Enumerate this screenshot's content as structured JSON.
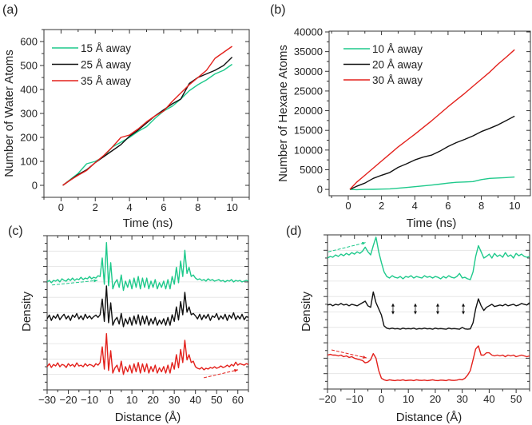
{
  "chart_data": [
    {
      "panel": "(a)",
      "type": "line",
      "xlabel": "Time (ns)",
      "ylabel": "Number of Water Atoms",
      "xlim": [
        -1,
        11
      ],
      "ylim": [
        -50,
        650
      ],
      "xticks": [
        0,
        2,
        4,
        6,
        8,
        10
      ],
      "yticks": [
        0,
        100,
        200,
        300,
        400,
        500,
        600
      ],
      "legend": "top-left",
      "grid": false,
      "x": [
        0.1,
        0.5,
        1,
        1.5,
        2,
        2.5,
        3,
        3.5,
        4,
        4.5,
        5,
        5.5,
        6,
        6.5,
        7,
        7.5,
        8,
        8.5,
        9,
        9.5,
        10
      ],
      "series": [
        {
          "name": "15 Å away",
          "color": "#1ec98b",
          "values": [
            0,
            22,
            50,
            90,
            100,
            120,
            160,
            180,
            200,
            225,
            245,
            280,
            310,
            330,
            360,
            395,
            420,
            440,
            465,
            480,
            505
          ]
        },
        {
          "name": "25 Å away",
          "color": "#111111",
          "values": [
            0,
            20,
            45,
            65,
            95,
            120,
            145,
            170,
            205,
            230,
            260,
            290,
            315,
            340,
            360,
            425,
            450,
            465,
            480,
            500,
            535
          ]
        },
        {
          "name": "35 Å away",
          "color": "#e3211c",
          "values": [
            0,
            20,
            42,
            62,
            95,
            125,
            160,
            200,
            210,
            235,
            265,
            290,
            310,
            350,
            385,
            420,
            450,
            480,
            530,
            555,
            580
          ]
        }
      ]
    },
    {
      "panel": "(b)",
      "type": "line",
      "xlabel": "Time (ns)",
      "ylabel": "Number of Hexane Atoms",
      "xlim": [
        -1.15,
        10.95
      ],
      "ylim": [
        -1600,
        40200
      ],
      "xticks": [
        0,
        2,
        4,
        6,
        8,
        10
      ],
      "yticks": [
        0,
        5000,
        10000,
        15000,
        20000,
        25000,
        30000,
        35000,
        40000
      ],
      "legend": "top-left",
      "grid": false,
      "x": [
        0.1,
        0.5,
        1,
        1.5,
        2,
        2.5,
        3,
        3.5,
        4,
        4.5,
        5,
        5.5,
        6,
        6.5,
        7,
        7.5,
        8,
        8.5,
        9,
        9.5,
        10
      ],
      "series": [
        {
          "name": "10 Å away",
          "color": "#1ec98b",
          "values": [
            0,
            -50,
            0,
            30,
            80,
            150,
            300,
            500,
            700,
            900,
            1100,
            1350,
            1600,
            1800,
            1900,
            2000,
            2500,
            2800,
            2900,
            3000,
            3150
          ]
        },
        {
          "name": "20 Å away",
          "color": "#111111",
          "values": [
            0,
            800,
            1600,
            2800,
            3600,
            4300,
            5600,
            6500,
            7500,
            8200,
            8700,
            9700,
            10900,
            11900,
            12700,
            13600,
            14700,
            15500,
            16400,
            17500,
            18600
          ]
        },
        {
          "name": "30 Å away",
          "color": "#e3211c",
          "values": [
            0,
            1800,
            3600,
            5400,
            7200,
            9000,
            10800,
            12400,
            14000,
            15700,
            17400,
            19200,
            21000,
            22700,
            24400,
            26200,
            28000,
            29800,
            31800,
            33600,
            35500
          ]
        }
      ]
    },
    {
      "panel": "(c)",
      "type": "line",
      "xlabel": "Distance (Å)",
      "ylabel": "Density",
      "xlim": [
        -30,
        65
      ],
      "ylim": [
        0,
        10
      ],
      "xticks": [
        -30,
        -20,
        -10,
        0,
        10,
        20,
        30,
        40,
        50,
        60
      ],
      "yticks_labeled": false,
      "grid": true,
      "x_start": -30,
      "x_step": 1,
      "series": [
        {
          "color": "#1ec98b",
          "values": [
            7.0,
            7.1,
            6.95,
            7.1,
            7.05,
            7.15,
            7.0,
            7.2,
            7.1,
            7.05,
            7.2,
            7.1,
            7.25,
            7.1,
            7.2,
            7.15,
            7.3,
            7.15,
            7.25,
            7.2,
            7.35,
            7.2,
            7.3,
            7.25,
            7.4,
            7.35,
            8.55,
            6.85,
            9.55,
            6.75,
            8.25,
            6.55,
            6.95,
            7.15,
            6.65,
            7.45,
            6.45,
            7.05,
            6.65,
            7.15,
            6.55,
            7.25,
            6.65,
            7.35,
            6.55,
            7.25,
            6.65,
            7.25,
            6.55,
            7.05,
            6.65,
            7.15,
            6.55,
            6.95,
            6.65,
            7.05,
            6.55,
            7.15,
            6.55,
            7.35,
            6.85,
            7.95,
            6.95,
            8.35,
            7.35,
            9.05,
            7.55,
            7.95,
            7.35,
            7.45,
            7.25,
            7.15,
            7.2,
            7.1,
            7.15,
            7.05,
            7.2,
            7.1,
            7.15,
            7.05,
            7.1,
            7.15,
            7.05,
            7.1,
            7.0,
            7.1,
            7.05,
            7.15,
            7.0,
            7.1,
            7.05,
            7.1,
            7.0,
            7.05,
            7.1,
            7.05
          ]
        },
        {
          "color": "#111111",
          "values": [
            4.6,
            4.85,
            4.5,
            4.8,
            4.65,
            4.9,
            4.55,
            4.75,
            4.9,
            4.6,
            4.8,
            4.5,
            4.85,
            4.7,
            4.95,
            4.6,
            4.8,
            4.55,
            4.9,
            4.65,
            4.8,
            4.6,
            4.75,
            4.85,
            4.7,
            4.87,
            5.89,
            4.44,
            6.74,
            4.36,
            5.64,
            4.19,
            4.53,
            4.7,
            4.27,
            4.96,
            4.1,
            4.61,
            4.27,
            4.7,
            4.19,
            4.79,
            4.27,
            4.87,
            4.19,
            4.79,
            4.27,
            4.79,
            4.19,
            4.61,
            4.27,
            4.7,
            4.19,
            4.53,
            4.27,
            4.61,
            4.19,
            4.7,
            4.19,
            4.87,
            4.44,
            5.38,
            4.53,
            5.72,
            4.87,
            6.32,
            5.04,
            5.38,
            4.87,
            4.96,
            4.8,
            4.6,
            4.9,
            4.55,
            4.85,
            4.65,
            4.9,
            4.5,
            4.8,
            4.7,
            4.95,
            4.55,
            4.8,
            4.6,
            4.9,
            4.5,
            4.85,
            4.65,
            5.0,
            4.55,
            4.8,
            4.6,
            4.9,
            4.55,
            4.75,
            4.7
          ]
        },
        {
          "color": "#e3211c",
          "values": [
            1.5,
            1.7,
            1.45,
            1.65,
            1.55,
            1.75,
            1.5,
            1.65,
            1.6,
            1.45,
            1.7,
            1.55,
            1.65,
            1.5,
            1.75,
            1.55,
            1.6,
            1.5,
            1.7,
            1.55,
            1.65,
            1.6,
            1.5,
            1.7,
            1.6,
            1.77,
            2.79,
            1.34,
            3.64,
            1.26,
            2.54,
            1.09,
            1.43,
            1.6,
            1.17,
            1.86,
            1.0,
            1.51,
            1.17,
            1.6,
            1.09,
            1.69,
            1.17,
            1.77,
            1.09,
            1.69,
            1.17,
            1.69,
            1.09,
            1.51,
            1.17,
            1.6,
            1.09,
            1.43,
            1.17,
            1.51,
            1.09,
            1.6,
            1.09,
            1.77,
            1.34,
            2.28,
            1.43,
            2.62,
            1.77,
            3.22,
            1.94,
            2.28,
            1.77,
            1.86,
            1.5,
            1.4,
            1.35,
            1.45,
            1.3,
            1.4,
            1.35,
            1.45,
            1.4,
            1.5,
            1.4,
            1.45,
            1.55,
            1.45,
            1.5,
            1.6,
            1.5,
            1.65,
            1.55,
            1.8,
            1.6,
            1.7,
            1.65,
            1.6,
            1.7,
            1.65
          ]
        }
      ],
      "annotations": [
        {
          "type": "dashed-arrow",
          "color": "#1ec98b",
          "from": [
            -27.7,
            6.8
          ],
          "to": [
            -6.2,
            7.1
          ]
        },
        {
          "type": "dashed-arrow",
          "color": "#e3211c",
          "from": [
            43.9,
            0.78
          ],
          "to": [
            60.1,
            1.3
          ]
        }
      ]
    },
    {
      "panel": "(d)",
      "type": "line",
      "xlabel": "Distance (Å)",
      "ylabel": "Density",
      "xlim": [
        -20,
        55
      ],
      "ylim": [
        0,
        10
      ],
      "xticks": [
        -20,
        -10,
        0,
        10,
        20,
        30,
        40,
        50
      ],
      "yticks_labeled": false,
      "grid": true,
      "x_start": -20,
      "x_step": 1,
      "series": [
        {
          "color": "#1ec98b",
          "values": [
            8.5,
            8.6,
            8.55,
            8.7,
            8.6,
            8.75,
            8.65,
            8.8,
            8.7,
            8.85,
            8.75,
            8.9,
            8.8,
            8.95,
            9.2,
            8.9,
            8.7,
            9.3,
            9.85,
            8.9,
            8.2,
            7.6,
            7.3,
            7.2,
            7.35,
            7.25,
            7.2,
            7.3,
            7.15,
            7.3,
            7.25,
            7.35,
            7.2,
            7.3,
            7.25,
            7.2,
            7.35,
            7.25,
            7.3,
            7.2,
            7.3,
            7.25,
            7.15,
            7.3,
            7.2,
            7.35,
            7.25,
            7.2,
            7.3,
            7.5,
            7.2,
            7.25,
            7.15,
            7.1,
            7.6,
            8.6,
            9.3,
            8.9,
            8.5,
            8.6,
            8.75,
            8.5,
            8.8,
            8.6,
            8.7,
            8.55,
            8.85,
            8.6,
            8.7,
            8.5,
            8.8,
            8.65,
            8.75,
            8.6,
            8.55,
            8.6
          ]
        },
        {
          "color": "#111111",
          "values": [
            5.45,
            5.5,
            5.4,
            5.5,
            5.45,
            5.55,
            5.45,
            5.5,
            5.4,
            5.5,
            5.45,
            5.4,
            5.5,
            5.6,
            5.7,
            5.4,
            5.3,
            6.3,
            5.6,
            5.2,
            4.8,
            4.1,
            3.95,
            3.9,
            3.95,
            3.9,
            3.92,
            3.88,
            3.95,
            3.9,
            3.92,
            3.9,
            3.95,
            3.88,
            3.92,
            3.9,
            3.95,
            3.9,
            3.92,
            3.88,
            3.95,
            3.9,
            3.92,
            3.9,
            3.88,
            3.95,
            3.9,
            3.92,
            3.9,
            3.88,
            4.0,
            3.9,
            3.88,
            3.9,
            4.3,
            5.2,
            5.85,
            5.4,
            5.1,
            5.3,
            5.4,
            5.5,
            5.35,
            5.4,
            5.45,
            5.4,
            5.5,
            5.4,
            5.45,
            5.5,
            5.4,
            5.45,
            5.55,
            5.5,
            5.45,
            5.6
          ]
        },
        {
          "color": "#e3211c",
          "values": [
            2.2,
            2.25,
            2.2,
            2.2,
            2.15,
            2.2,
            2.1,
            2.15,
            2.05,
            2.1,
            2.0,
            1.95,
            1.9,
            1.85,
            1.7,
            1.75,
            1.9,
            2.3,
            2.0,
            1.2,
            0.7,
            0.6,
            0.55,
            0.6,
            0.57,
            0.55,
            0.58,
            0.56,
            0.6,
            0.55,
            0.57,
            0.58,
            0.55,
            0.6,
            0.57,
            0.56,
            0.58,
            0.55,
            0.57,
            0.6,
            0.56,
            0.55,
            0.58,
            0.57,
            0.55,
            0.6,
            0.57,
            0.56,
            0.58,
            0.62,
            0.6,
            0.7,
            0.9,
            1.2,
            1.9,
            2.6,
            2.8,
            2.2,
            2.2,
            2.35,
            2.35,
            2.2,
            2.15,
            2.2,
            2.15,
            2.2,
            2.1,
            2.2,
            2.15,
            2.2,
            2.1,
            2.15,
            2.2,
            2.15,
            2.1,
            2.15
          ]
        }
      ],
      "annotations": [
        {
          "type": "dashed-arrow",
          "color": "#1ec98b",
          "from": [
            -19.7,
            8.9
          ],
          "to": [
            -5.8,
            9.5
          ]
        },
        {
          "type": "dashed-arrow",
          "color": "#e3211c",
          "from": [
            -18.5,
            2.54
          ],
          "to": [
            -5.5,
            2.02
          ]
        },
        {
          "type": "double-arrow",
          "color": "#111111",
          "x": [
            4.3,
            12.6,
            20.9,
            30.4
          ],
          "y": 5.2
        }
      ]
    }
  ]
}
